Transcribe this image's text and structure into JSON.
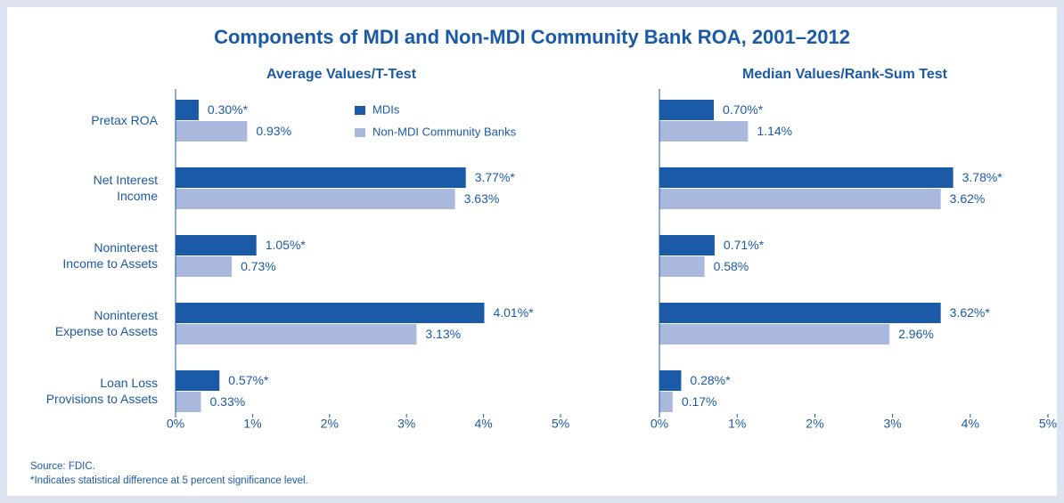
{
  "title": "Components of MDI and Non-MDI Community Bank ROA, 2001–2012",
  "notes": [
    "Source: FDIC.",
    "*Indicates statistical difference at 5 percent significance level."
  ],
  "chart_data": [
    {
      "type": "bar",
      "orientation": "horizontal",
      "subtitle": "Average Values/T-Test",
      "categories": [
        "Pretax ROA",
        "Net Interest\nIncome",
        "Noninterest\nIncome to Assets",
        "Noninterest\nExpense to Assets",
        "Loan Loss\nProvisions to Assets"
      ],
      "series": [
        {
          "name": "MDIs",
          "color": "#1a5aa6",
          "values": [
            0.3,
            3.77,
            1.05,
            4.01,
            0.57
          ],
          "value_labels": [
            "0.30%*",
            "3.77%*",
            "1.05%*",
            "4.01%*",
            "0.57%*"
          ]
        },
        {
          "name": "Non-MDI Community Banks",
          "color": "#aab8de",
          "values": [
            0.93,
            3.63,
            0.73,
            3.13,
            0.33
          ],
          "value_labels": [
            "0.93%",
            "3.63%",
            "0.73%",
            "3.13%",
            "0.33%"
          ]
        }
      ],
      "xlim": [
        0,
        5
      ],
      "xticks": [
        {
          "value": 0,
          "label": "0%"
        },
        {
          "value": 1,
          "label": "1%"
        },
        {
          "value": 2,
          "label": "2%"
        },
        {
          "value": 3,
          "label": "3%"
        },
        {
          "value": 4,
          "label": "4%"
        },
        {
          "value": 5,
          "label": "5%"
        }
      ]
    },
    {
      "type": "bar",
      "orientation": "horizontal",
      "subtitle": "Median Values/Rank-Sum Test",
      "series": [
        {
          "color": "#1a5aa6",
          "values": [
            0.7,
            3.78,
            0.71,
            3.62,
            0.28
          ],
          "value_labels": [
            "0.70%*",
            "3.78%*",
            "0.71%*",
            "3.62%*",
            "0.28%*"
          ]
        },
        {
          "color": "#aab8de",
          "values": [
            1.14,
            3.62,
            0.58,
            2.96,
            0.17
          ],
          "value_labels": [
            "1.14%",
            "3.62%",
            "0.58%",
            "2.96%",
            "0.17%"
          ]
        }
      ],
      "xlim": [
        0,
        5
      ],
      "xticks": [
        {
          "value": 0,
          "label": "0%"
        },
        {
          "value": 1,
          "label": "1%"
        },
        {
          "value": 2,
          "label": "2%"
        },
        {
          "value": 3,
          "label": "3%"
        },
        {
          "value": 4,
          "label": "4%"
        },
        {
          "value": 5,
          "label": "5%"
        }
      ]
    }
  ]
}
